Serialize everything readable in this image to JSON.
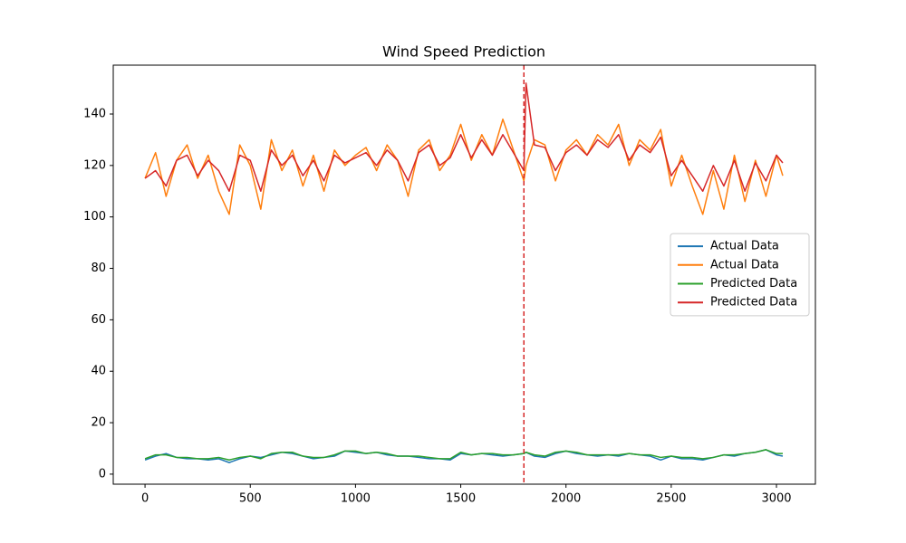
{
  "chart_data": {
    "type": "line",
    "title": "Wind Speed Prediction",
    "x": [
      0,
      50,
      100,
      150,
      200,
      250,
      300,
      350,
      400,
      450,
      500,
      550,
      600,
      650,
      700,
      750,
      800,
      850,
      900,
      950,
      1000,
      1050,
      1100,
      1150,
      1200,
      1250,
      1300,
      1350,
      1400,
      1450,
      1500,
      1550,
      1600,
      1650,
      1700,
      1750,
      1800,
      1810,
      1850,
      1900,
      1950,
      2000,
      2050,
      2100,
      2150,
      2200,
      2250,
      2300,
      2350,
      2400,
      2450,
      2500,
      2550,
      2600,
      2650,
      2700,
      2750,
      2800,
      2850,
      2900,
      2950,
      3000,
      3030
    ],
    "series": [
      {
        "name": "Actual Data",
        "color": "#1f77b4",
        "values": [
          5.5,
          7,
          8,
          6.5,
          6,
          6,
          5.5,
          6,
          4.5,
          6,
          7,
          6.5,
          7.5,
          8.5,
          8,
          7,
          6,
          6.5,
          7,
          9,
          8.5,
          8,
          8.5,
          7.5,
          7,
          7,
          6.5,
          6,
          6,
          5.5,
          8,
          7.5,
          8,
          7.5,
          7,
          7.5,
          8,
          8.5,
          7,
          6.5,
          8,
          9,
          8,
          7.5,
          7,
          7.5,
          7,
          8,
          7.5,
          7,
          5.5,
          7,
          6,
          6,
          5.5,
          6.5,
          7.5,
          7,
          8,
          8.5,
          9.5,
          7.5,
          7
        ]
      },
      {
        "name": "Actual Data",
        "color": "#ff7f0e",
        "values": [
          115,
          125,
          108,
          122,
          128,
          115,
          124,
          110,
          101,
          128,
          120,
          103,
          130,
          118,
          126,
          112,
          124,
          110,
          126,
          120,
          124,
          127,
          118,
          128,
          122,
          108,
          126,
          130,
          118,
          124,
          136,
          122,
          132,
          124,
          138,
          126,
          114,
          120,
          130,
          128,
          114,
          126,
          130,
          124,
          132,
          128,
          136,
          120,
          130,
          126,
          134,
          112,
          124,
          112,
          101,
          118,
          103,
          124,
          106,
          122,
          108,
          124,
          116
        ]
      },
      {
        "name": "Predicted Data",
        "color": "#2ca02c",
        "values": [
          6,
          7.5,
          7.5,
          6.5,
          6.5,
          6,
          6,
          6.5,
          5.5,
          6.5,
          7,
          6,
          8,
          8.5,
          8.5,
          7,
          6.5,
          6.5,
          7.5,
          9,
          9,
          8,
          8.5,
          8,
          7,
          7,
          7,
          6.5,
          6,
          6,
          8.5,
          7.5,
          8,
          8,
          7.5,
          7.5,
          8,
          8.5,
          7.5,
          7,
          8.5,
          9,
          8.5,
          7.5,
          7.5,
          7.5,
          7.5,
          8,
          7.5,
          7.5,
          6.5,
          7,
          6.5,
          6.5,
          6,
          6.5,
          7.5,
          7.5,
          8,
          8.5,
          9.5,
          8,
          8
        ]
      },
      {
        "name": "Predicted Data",
        "color": "#d62728",
        "values": [
          115,
          118,
          112,
          122,
          124,
          116,
          122,
          118,
          110,
          124,
          122,
          110,
          126,
          120,
          124,
          116,
          122,
          114,
          124,
          121,
          123,
          125,
          120,
          126,
          122,
          114,
          125,
          128,
          120,
          123,
          132,
          123,
          130,
          124,
          132,
          125,
          118,
          152,
          128,
          127,
          118,
          125,
          128,
          124,
          130,
          127,
          132,
          122,
          128,
          125,
          131,
          116,
          122,
          116,
          110,
          120,
          112,
          122,
          110,
          121,
          114,
          124,
          121
        ]
      }
    ],
    "vline": {
      "x": 1800,
      "color": "#d62728",
      "style": "dashed"
    },
    "xlim": [
      -151,
      3185
    ],
    "ylim": [
      -3.9,
      159
    ],
    "xticks": [
      0,
      500,
      1000,
      1500,
      2000,
      2500,
      3000
    ],
    "yticks": [
      0,
      20,
      40,
      60,
      80,
      100,
      120,
      140
    ],
    "grid": false,
    "legend": "center right"
  }
}
